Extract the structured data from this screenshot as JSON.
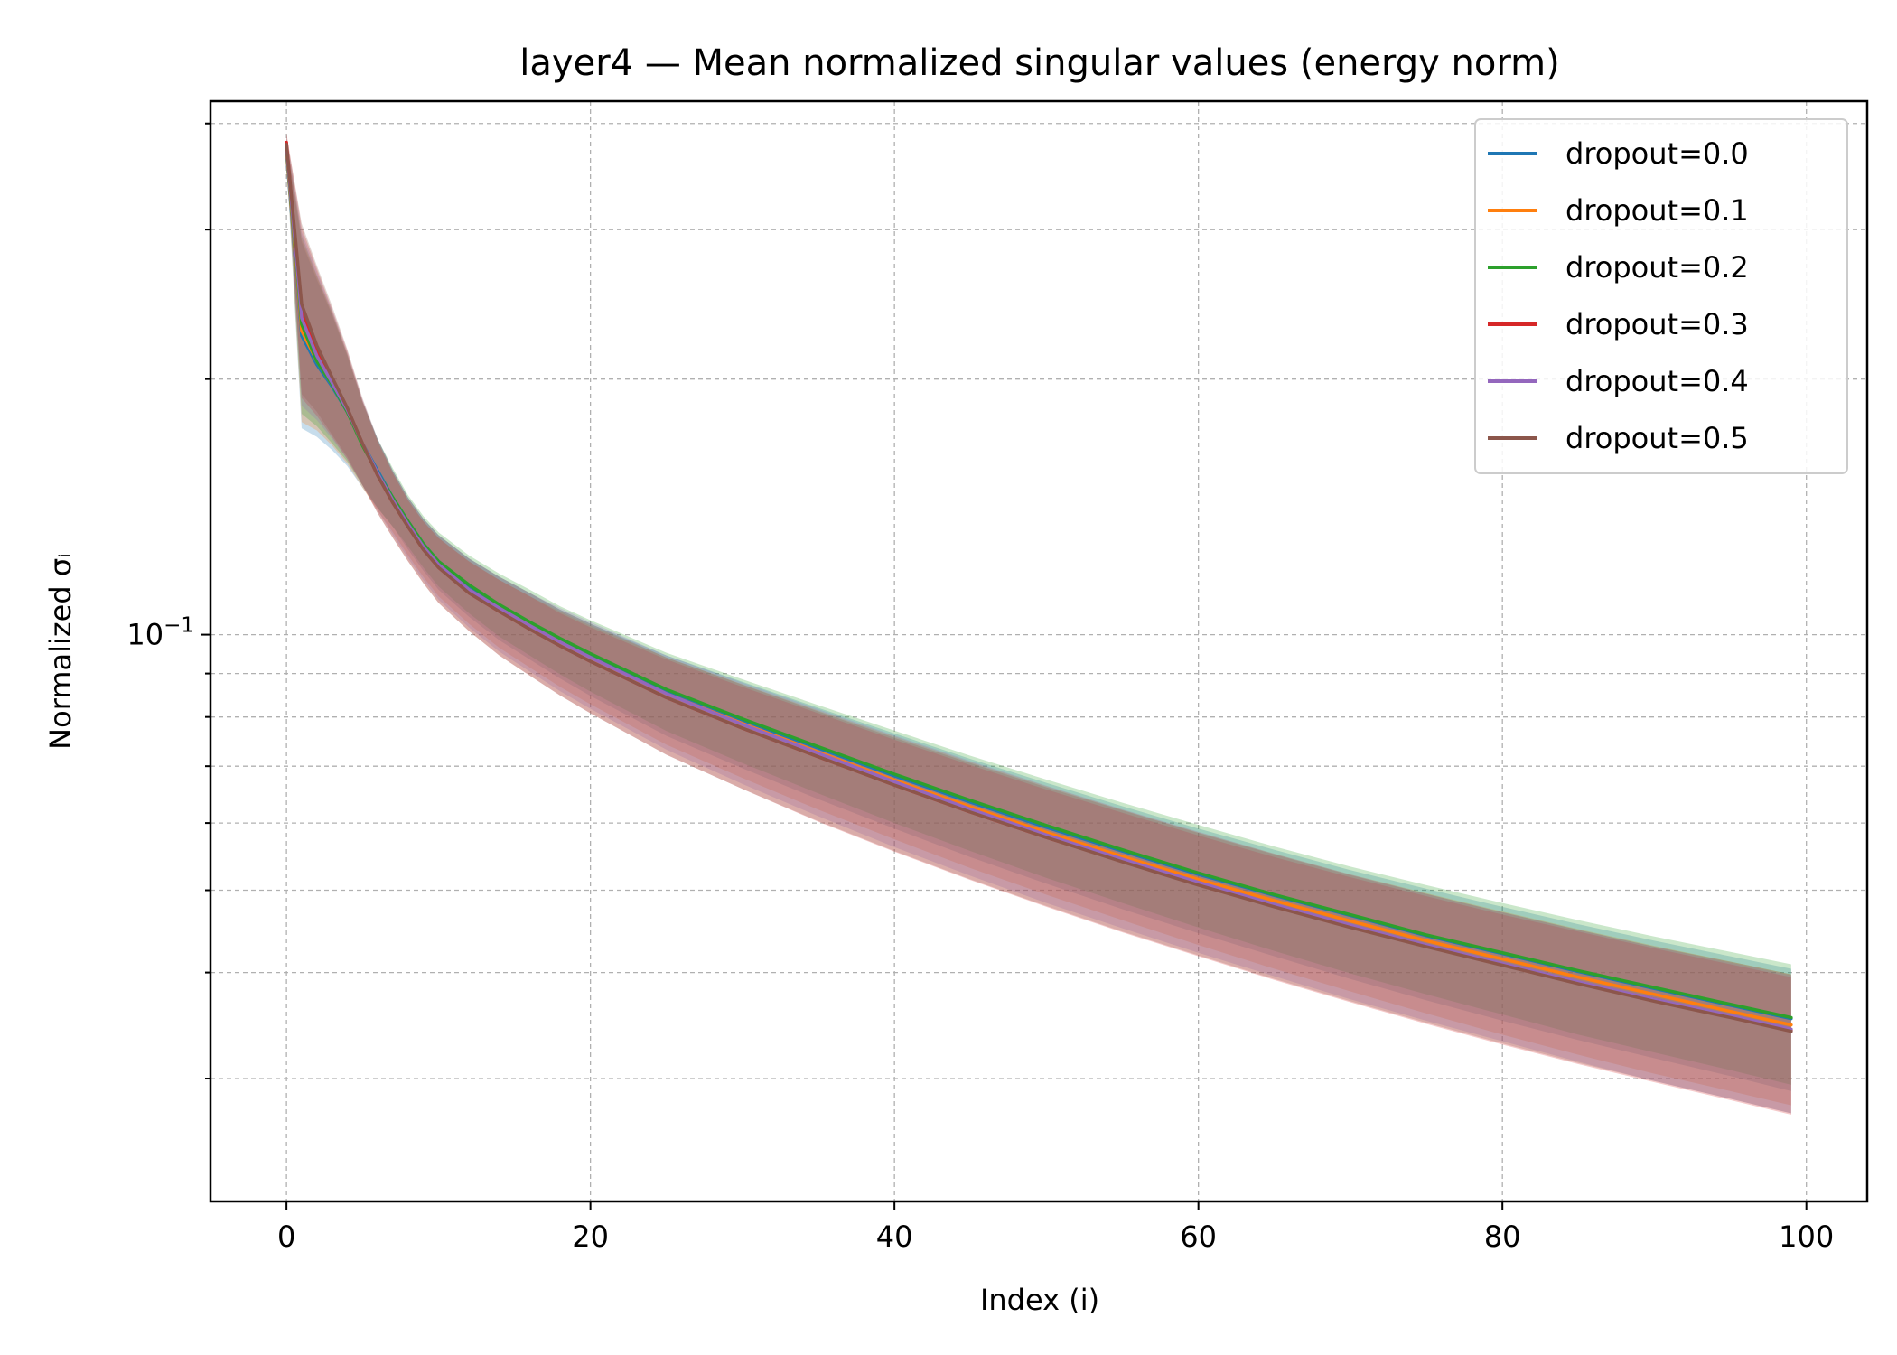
{
  "chart_data": {
    "type": "line",
    "title": "layer4 — Mean normalized singular values (energy norm)",
    "xlabel": "Index (i)",
    "ylabel": "Normalized σᵢ",
    "xlim": [
      -5,
      104
    ],
    "ylim": [
      0.0215,
      0.425
    ],
    "y_scale": "log",
    "grid": true,
    "legend_position": "upper right",
    "x_ticks": [
      0,
      20,
      40,
      60,
      80,
      100
    ],
    "x_tick_labels": [
      "0",
      "20",
      "40",
      "60",
      "80",
      "100"
    ],
    "y_major_ticks": [
      0.1
    ],
    "y_major_tick_labels": [
      "10^{-1}"
    ],
    "y_minor_ticks": [
      0.03,
      0.04,
      0.05,
      0.06,
      0.07,
      0.08,
      0.09,
      0.2,
      0.3,
      0.4
    ],
    "x": [
      0,
      1,
      2,
      3,
      4,
      5,
      6,
      7,
      8,
      9,
      10,
      12,
      14,
      16,
      18,
      20,
      25,
      30,
      35,
      40,
      45,
      50,
      55,
      60,
      65,
      70,
      75,
      80,
      85,
      90,
      95,
      99
    ],
    "band_alpha": 0.25,
    "series": [
      {
        "name": "dropout=0.0",
        "color": "#1f77b4",
        "values": [
          0.37,
          0.225,
          0.208,
          0.196,
          0.183,
          0.168,
          0.156,
          0.145,
          0.136,
          0.128,
          0.122,
          0.114,
          0.108,
          0.103,
          0.0985,
          0.0945,
          0.0858,
          0.0793,
          0.0735,
          0.0682,
          0.0635,
          0.0593,
          0.0556,
          0.0522,
          0.0493,
          0.0467,
          0.0442,
          0.0421,
          0.0401,
          0.0383,
          0.0366,
          0.0353
        ],
        "lower": [
          0.36,
          0.175,
          0.171,
          0.165,
          0.158,
          0.149,
          0.141,
          0.134,
          0.126,
          0.119,
          0.113,
          0.105,
          0.0985,
          0.0935,
          0.0888,
          0.0847,
          0.076,
          0.0696,
          0.064,
          0.0591,
          0.0547,
          0.0509,
          0.0475,
          0.0445,
          0.0418,
          0.0393,
          0.0371,
          0.0351,
          0.0333,
          0.0317,
          0.0302,
          0.029
        ],
        "upper": [
          0.38,
          0.29,
          0.262,
          0.238,
          0.213,
          0.188,
          0.17,
          0.156,
          0.145,
          0.137,
          0.131,
          0.123,
          0.117,
          0.112,
          0.107,
          0.103,
          0.0945,
          0.088,
          0.082,
          0.0765,
          0.0714,
          0.0669,
          0.0628,
          0.0591,
          0.0558,
          0.0528,
          0.0502,
          0.0478,
          0.0456,
          0.0436,
          0.0418,
          0.0404
        ]
      },
      {
        "name": "dropout=0.1",
        "color": "#ff7f0e",
        "values": [
          0.372,
          0.228,
          0.21,
          0.197,
          0.184,
          0.168,
          0.155,
          0.144,
          0.135,
          0.127,
          0.121,
          0.113,
          0.1075,
          0.1025,
          0.098,
          0.094,
          0.0852,
          0.0786,
          0.0727,
          0.0674,
          0.0627,
          0.0585,
          0.0548,
          0.0515,
          0.0486,
          0.046,
          0.0436,
          0.0415,
          0.0395,
          0.0377,
          0.036,
          0.0347
        ],
        "lower": [
          0.362,
          0.178,
          0.174,
          0.167,
          0.159,
          0.149,
          0.14,
          0.132,
          0.124,
          0.117,
          0.111,
          0.103,
          0.0965,
          0.0915,
          0.0868,
          0.0828,
          0.0742,
          0.0678,
          0.0622,
          0.0574,
          0.0531,
          0.0494,
          0.0461,
          0.0431,
          0.0404,
          0.038,
          0.0358,
          0.0338,
          0.032,
          0.0304,
          0.029,
          0.0279
        ],
        "upper": [
          0.382,
          0.292,
          0.264,
          0.239,
          0.214,
          0.188,
          0.169,
          0.155,
          0.144,
          0.136,
          0.13,
          0.122,
          0.116,
          0.111,
          0.1065,
          0.1025,
          0.094,
          0.0874,
          0.0814,
          0.0759,
          0.0708,
          0.0663,
          0.0622,
          0.0585,
          0.0552,
          0.0522,
          0.0496,
          0.0472,
          0.045,
          0.043,
          0.0412,
          0.0398
        ]
      },
      {
        "name": "dropout=0.2",
        "color": "#2ca02c",
        "values": [
          0.375,
          0.232,
          0.21,
          0.197,
          0.183,
          0.167,
          0.155,
          0.145,
          0.136,
          0.128,
          0.122,
          0.1145,
          0.1085,
          0.1035,
          0.099,
          0.095,
          0.0862,
          0.0796,
          0.0738,
          0.0685,
          0.0638,
          0.0596,
          0.0558,
          0.0524,
          0.0494,
          0.0468,
          0.0443,
          0.0422,
          0.0402,
          0.0384,
          0.0367,
          0.0354
        ],
        "lower": [
          0.365,
          0.182,
          0.176,
          0.168,
          0.16,
          0.15,
          0.141,
          0.134,
          0.127,
          0.12,
          0.114,
          0.106,
          0.0995,
          0.0945,
          0.0898,
          0.0857,
          0.077,
          0.0706,
          0.065,
          0.06,
          0.0556,
          0.0517,
          0.0483,
          0.0452,
          0.0424,
          0.0399,
          0.0377,
          0.0357,
          0.0338,
          0.0322,
          0.0307,
          0.0295
        ],
        "upper": [
          0.385,
          0.295,
          0.265,
          0.24,
          0.214,
          0.188,
          0.17,
          0.157,
          0.146,
          0.138,
          0.132,
          0.124,
          0.118,
          0.113,
          0.108,
          0.104,
          0.0952,
          0.0886,
          0.0826,
          0.0771,
          0.072,
          0.0675,
          0.0634,
          0.0597,
          0.0563,
          0.0533,
          0.0507,
          0.0483,
          0.0461,
          0.0441,
          0.0423,
          0.0409
        ]
      },
      {
        "name": "dropout=0.3",
        "color": "#d62728",
        "values": [
          0.38,
          0.24,
          0.215,
          0.199,
          0.184,
          0.168,
          0.154,
          0.143,
          0.134,
          0.126,
          0.12,
          0.112,
          0.1065,
          0.1015,
          0.097,
          0.093,
          0.0843,
          0.0776,
          0.0718,
          0.0665,
          0.0618,
          0.0577,
          0.0541,
          0.0508,
          0.0479,
          0.0453,
          0.043,
          0.0409,
          0.0389,
          0.0372,
          0.0355,
          0.0342
        ],
        "lower": [
          0.37,
          0.19,
          0.181,
          0.171,
          0.161,
          0.15,
          0.139,
          0.13,
          0.122,
          0.115,
          0.109,
          0.101,
          0.0945,
          0.0895,
          0.0848,
          0.0808,
          0.0722,
          0.0658,
          0.0602,
          0.0555,
          0.0514,
          0.0478,
          0.0446,
          0.0418,
          0.0392,
          0.0369,
          0.0348,
          0.0329,
          0.0312,
          0.0297,
          0.0283,
          0.0272
        ],
        "upper": [
          0.39,
          0.302,
          0.27,
          0.242,
          0.216,
          0.189,
          0.169,
          0.155,
          0.144,
          0.136,
          0.13,
          0.122,
          0.116,
          0.111,
          0.106,
          0.102,
          0.0935,
          0.0868,
          0.0808,
          0.0752,
          0.0702,
          0.0657,
          0.0617,
          0.058,
          0.0547,
          0.0518,
          0.0492,
          0.0468,
          0.0447,
          0.0427,
          0.0409,
          0.0395
        ]
      },
      {
        "name": "dropout=0.4",
        "color": "#9467bd",
        "values": [
          0.376,
          0.236,
          0.213,
          0.198,
          0.184,
          0.168,
          0.155,
          0.144,
          0.135,
          0.127,
          0.121,
          0.113,
          0.1075,
          0.1025,
          0.098,
          0.094,
          0.0852,
          0.0784,
          0.0725,
          0.0671,
          0.0623,
          0.0581,
          0.0544,
          0.0511,
          0.0481,
          0.0455,
          0.0431,
          0.041,
          0.039,
          0.0372,
          0.0356,
          0.0343
        ],
        "lower": [
          0.366,
          0.186,
          0.179,
          0.17,
          0.161,
          0.15,
          0.14,
          0.131,
          0.123,
          0.116,
          0.11,
          0.102,
          0.0955,
          0.0905,
          0.0858,
          0.0818,
          0.0732,
          0.0667,
          0.0611,
          0.0562,
          0.052,
          0.0483,
          0.0451,
          0.0422,
          0.0396,
          0.0372,
          0.0351,
          0.0332,
          0.0314,
          0.0298,
          0.0284,
          0.0273
        ],
        "upper": [
          0.386,
          0.298,
          0.268,
          0.241,
          0.215,
          0.189,
          0.17,
          0.156,
          0.145,
          0.137,
          0.131,
          0.123,
          0.117,
          0.112,
          0.1075,
          0.1035,
          0.0945,
          0.0878,
          0.0817,
          0.0761,
          0.071,
          0.0664,
          0.0623,
          0.0586,
          0.0552,
          0.0522,
          0.0495,
          0.0471,
          0.0449,
          0.0429,
          0.0411,
          0.0397
        ]
      },
      {
        "name": "dropout=0.5",
        "color": "#8c564b",
        "values": [
          0.378,
          0.245,
          0.219,
          0.201,
          0.185,
          0.168,
          0.154,
          0.143,
          0.134,
          0.126,
          0.12,
          0.112,
          0.1065,
          0.1015,
          0.097,
          0.093,
          0.0843,
          0.0776,
          0.0718,
          0.0665,
          0.0618,
          0.0577,
          0.054,
          0.0507,
          0.0478,
          0.0452,
          0.0429,
          0.0408,
          0.0388,
          0.037,
          0.0354,
          0.0341
        ],
        "lower": [
          0.368,
          0.192,
          0.183,
          0.172,
          0.162,
          0.15,
          0.139,
          0.13,
          0.122,
          0.115,
          0.109,
          0.101,
          0.0945,
          0.0895,
          0.0848,
          0.0808,
          0.0722,
          0.0658,
          0.0603,
          0.0556,
          0.0515,
          0.0479,
          0.0447,
          0.0419,
          0.0393,
          0.037,
          0.0349,
          0.033,
          0.0313,
          0.0298,
          0.0284,
          0.0273
        ],
        "upper": [
          0.388,
          0.305,
          0.272,
          0.244,
          0.217,
          0.19,
          0.17,
          0.156,
          0.145,
          0.137,
          0.131,
          0.123,
          0.117,
          0.112,
          0.107,
          0.103,
          0.094,
          0.0873,
          0.0812,
          0.0756,
          0.0706,
          0.0661,
          0.0621,
          0.0584,
          0.0551,
          0.0521,
          0.0495,
          0.0471,
          0.0449,
          0.0429,
          0.0412,
          0.0398
        ]
      }
    ]
  }
}
